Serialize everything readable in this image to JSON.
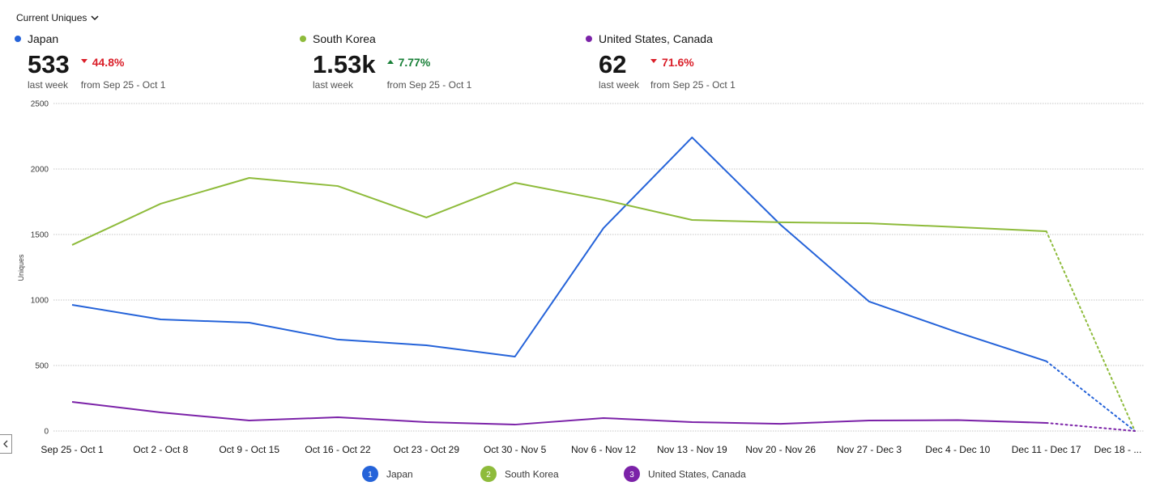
{
  "dropdown": "Current Uniques",
  "summary": [
    {
      "value": "533",
      "period": "last week",
      "change": "44.8%",
      "direction": "down",
      "comparison": "from Sep 25 - Oct 1"
    },
    {
      "value": "1.53k",
      "period": "last week",
      "change": "7.77%",
      "direction": "up",
      "comparison": "from Sep 25 - Oct 1"
    },
    {
      "value": "62",
      "period": "last week",
      "change": "71.6%",
      "direction": "down",
      "comparison": "from Sep 25 - Oct 1"
    }
  ],
  "chart_data": {
    "type": "line",
    "y_label": "Uniques",
    "categories": [
      "Sep 25 - Oct 1",
      "Oct 2 - Oct 8",
      "Oct 9 - Oct 15",
      "Oct 16 - Oct 22",
      "Oct 23 - Oct 29",
      "Oct 30 - Nov 5",
      "Nov 6 - Nov 12",
      "Nov 13 - Nov 19",
      "Nov 20 - Nov 26",
      "Nov 27 - Dec 3",
      "Dec 4 - Dec 10",
      "Dec 11 - Dec 17",
      "Dec 18 - ..."
    ],
    "series": [
      {
        "name": "Japan",
        "color": "#2563d9",
        "marker": "1",
        "values": [
          963,
          852,
          827,
          698,
          654,
          568,
          1549,
          2241,
          1574,
          988,
          753,
          533,
          0
        ]
      },
      {
        "name": "South Korea",
        "color": "#8ebb3b",
        "marker": "2",
        "values": [
          1420,
          1735,
          1932,
          1870,
          1630,
          1895,
          1765,
          1611,
          1593,
          1586,
          1556,
          1525,
          0
        ]
      },
      {
        "name": "United States, Canada",
        "color": "#7b22a8",
        "marker": "3",
        "values": [
          222,
          142,
          80,
          105,
          68,
          49,
          99,
          68,
          55,
          80,
          83,
          62,
          0
        ]
      }
    ],
    "ylim": [
      0,
      2500
    ],
    "yticks": [
      0,
      500,
      1000,
      1500,
      2000,
      2500
    ],
    "grid": true,
    "dotted_last_segment": true
  }
}
